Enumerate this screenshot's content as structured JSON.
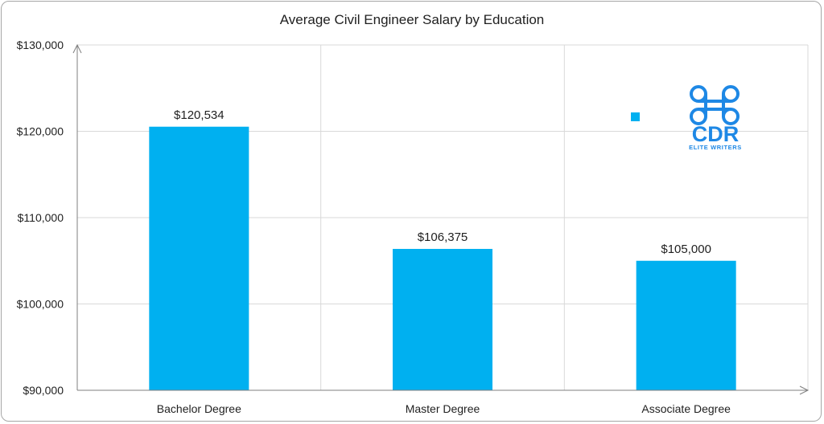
{
  "colors": {
    "bar": "#00b0f0",
    "grid": "#d9d9d9",
    "axis": "#7f7f7f",
    "logo": "#1e88e5"
  },
  "chart_data": {
    "type": "bar",
    "title": "Average Civil Engineer Salary by Education",
    "categories": [
      "Bachelor Degree",
      "Master Degree",
      "Associate Degree"
    ],
    "values": [
      120534,
      106375,
      105000
    ],
    "value_labels": [
      "$120,534",
      "$106,375",
      "$105,000"
    ],
    "ylim": [
      90000,
      130000
    ],
    "yticks": [
      90000,
      100000,
      110000,
      120000,
      130000
    ],
    "ytick_labels": [
      "$90,000",
      "$100,000",
      "$110,000",
      "$120,000",
      "$130,000"
    ],
    "xlabel": "",
    "ylabel": "",
    "grid": true,
    "legend": "none"
  },
  "logo": {
    "mark_text": "CDR",
    "tagline": "ELITE WRITERS"
  }
}
